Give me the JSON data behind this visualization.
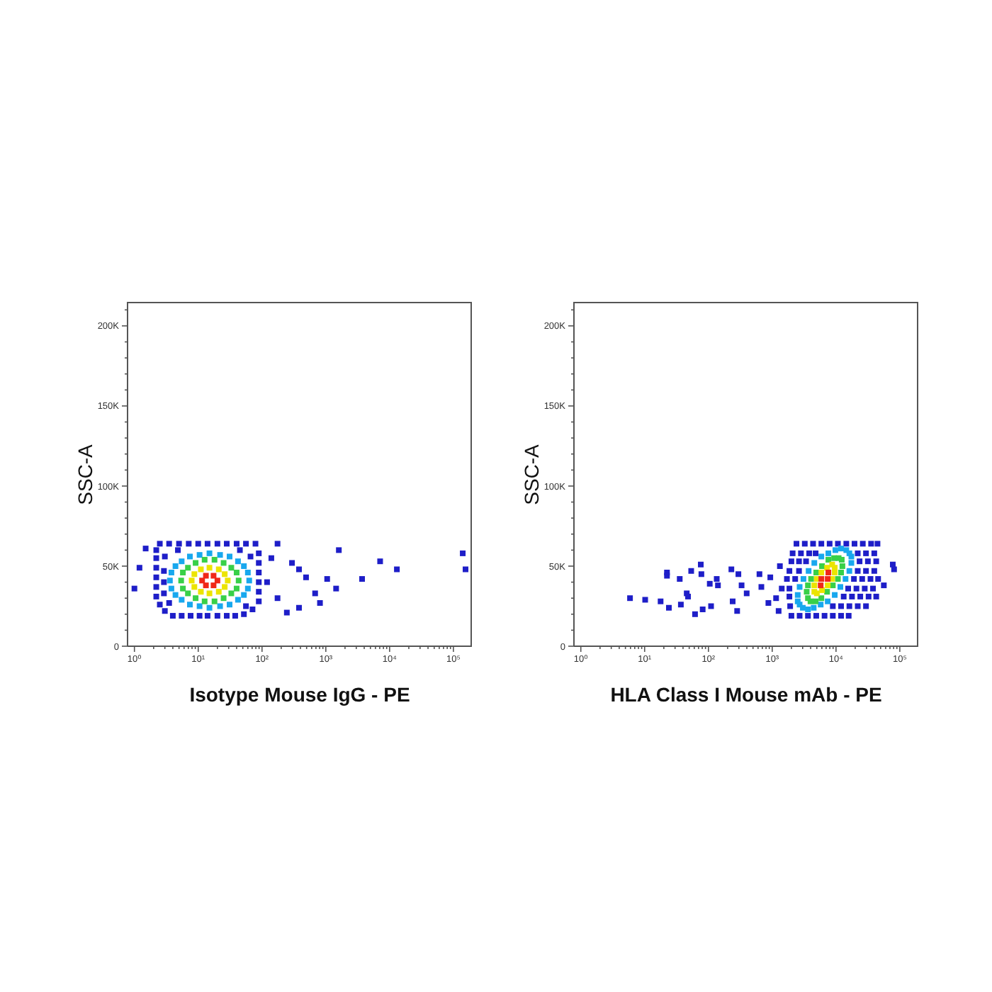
{
  "chart_data": [
    {
      "type": "scatter",
      "xlabel": "Isotype Mouse IgG - PE",
      "ylabel": "SSC-A",
      "log": "x",
      "marker": "square",
      "xlim": [
        0.78,
        195000
      ],
      "ylim": [
        0,
        215000
      ],
      "xticks": [
        {
          "value": 1,
          "label": "10⁰"
        },
        {
          "value": 2,
          "label": null
        },
        {
          "value": 3,
          "label": null
        },
        {
          "value": 4,
          "label": null
        },
        {
          "value": 5,
          "label": null
        },
        {
          "value": 6,
          "label": null
        },
        {
          "value": 7,
          "label": null
        },
        {
          "value": 8,
          "label": null
        },
        {
          "value": 9,
          "label": null
        },
        {
          "value": 10,
          "label": "10¹"
        },
        {
          "value": 20,
          "label": null
        },
        {
          "value": 30,
          "label": null
        },
        {
          "value": 40,
          "label": null
        },
        {
          "value": 50,
          "label": null
        },
        {
          "value": 60,
          "label": null
        },
        {
          "value": 70,
          "label": null
        },
        {
          "value": 80,
          "label": null
        },
        {
          "value": 90,
          "label": null
        },
        {
          "value": 100,
          "label": "10²"
        },
        {
          "value": 200,
          "label": null
        },
        {
          "value": 300,
          "label": null
        },
        {
          "value": 400,
          "label": null
        },
        {
          "value": 500,
          "label": null
        },
        {
          "value": 600,
          "label": null
        },
        {
          "value": 700,
          "label": null
        },
        {
          "value": 800,
          "label": null
        },
        {
          "value": 900,
          "label": null
        },
        {
          "value": 1000,
          "label": "10³"
        },
        {
          "value": 2000,
          "label": null
        },
        {
          "value": 3000,
          "label": null
        },
        {
          "value": 4000,
          "label": null
        },
        {
          "value": 5000,
          "label": null
        },
        {
          "value": 6000,
          "label": null
        },
        {
          "value": 7000,
          "label": null
        },
        {
          "value": 8000,
          "label": null
        },
        {
          "value": 9000,
          "label": null
        },
        {
          "value": 10000,
          "label": "10⁴"
        },
        {
          "value": 20000,
          "label": null
        },
        {
          "value": 30000,
          "label": null
        },
        {
          "value": 40000,
          "label": null
        },
        {
          "value": 50000,
          "label": null
        },
        {
          "value": 60000,
          "label": null
        },
        {
          "value": 70000,
          "label": null
        },
        {
          "value": 80000,
          "label": null
        },
        {
          "value": 90000,
          "label": null
        },
        {
          "value": 100000,
          "label": "10⁵"
        }
      ],
      "yticks": [
        0,
        {
          "value": 10000,
          "label": null
        },
        {
          "value": 20000,
          "label": null
        },
        {
          "value": 30000,
          "label": null
        },
        {
          "value": 40000,
          "label": null
        },
        {
          "value": 50000,
          "label": "50K"
        },
        {
          "value": 60000,
          "label": null
        },
        {
          "value": 70000,
          "label": null
        },
        {
          "value": 80000,
          "label": null
        },
        {
          "value": 90000,
          "label": null
        },
        {
          "value": 100000,
          "label": "100K"
        },
        {
          "value": 110000,
          "label": null
        },
        {
          "value": 120000,
          "label": null
        },
        {
          "value": 130000,
          "label": null
        },
        {
          "value": 140000,
          "label": null
        },
        {
          "value": 150000,
          "label": "150K"
        },
        {
          "value": 160000,
          "label": null
        },
        {
          "value": 170000,
          "label": null
        },
        {
          "value": 180000,
          "label": null
        },
        {
          "value": 190000,
          "label": null
        },
        {
          "value": 200000,
          "label": "200K"
        },
        {
          "value": 210000,
          "label": null
        }
      ],
      "series": [
        {
          "color": "#1e1ec8",
          "x": [
            2.5,
            3.5,
            5,
            7.1,
            10,
            14,
            20,
            28,
            40,
            56,
            79,
            89,
            89,
            89,
            89,
            89,
            89,
            71,
            52,
            38,
            28,
            20,
            14,
            10.5,
            7.6,
            5.5,
            4,
            3,
            2.5,
            2.2,
            2.2,
            2.2,
            2.2,
            2.2,
            2.2,
            3,
            4.8,
            45,
            66,
            56,
            3.5,
            2.9,
            2.9,
            2.9,
            1.2,
            1,
            1.5,
            175,
            295,
            380,
            490,
            1050,
            680,
            1450,
            1600,
            245,
            810,
            380,
            3700,
            7100,
            13000,
            140000,
            155000,
            175,
            120,
            140
          ],
          "values": [
            64000,
            64000,
            64000,
            64000,
            64000,
            64000,
            64000,
            64000,
            64000,
            64000,
            64000,
            58000,
            52000,
            46000,
            40000,
            34000,
            28000,
            23000,
            20000,
            19000,
            19000,
            19000,
            19000,
            19000,
            19000,
            19000,
            19000,
            22000,
            26000,
            31000,
            37000,
            43000,
            49000,
            55000,
            60000,
            56000,
            60000,
            60000,
            56000,
            25000,
            27000,
            47000,
            40000,
            33000,
            49000,
            36000,
            61000,
            64000,
            52000,
            48000,
            43000,
            42000,
            33000,
            36000,
            60000,
            21000,
            27000,
            24000,
            42000,
            53000,
            48000,
            58000,
            48000,
            30000,
            40000,
            55000
          ]
        },
        {
          "color": "#18a8ee",
          "x": [
            63,
            60,
            52,
            42,
            31,
            22,
            15,
            10.5,
            7.4,
            5.5,
            4.4,
            3.8,
            3.6,
            3.8,
            4.4,
            5.5,
            7.4,
            10.5,
            15,
            22,
            31,
            42,
            52,
            60
          ],
          "values": [
            41000,
            46000,
            50000,
            53000,
            56000,
            57000,
            58000,
            57000,
            56000,
            53000,
            50000,
            46000,
            41000,
            36000,
            32000,
            29000,
            26000,
            25000,
            24000,
            25000,
            26000,
            29000,
            32000,
            36000
          ]
        },
        {
          "color": "#38d048",
          "x": [
            43,
            40,
            33,
            25,
            18,
            12.6,
            9.1,
            6.9,
            5.75,
            5.4,
            5.75,
            6.9,
            9.1,
            12.6,
            18,
            25,
            33,
            40
          ],
          "values": [
            41000,
            46000,
            49000,
            52000,
            54000,
            54000,
            52000,
            49000,
            46000,
            41000,
            36000,
            33000,
            30000,
            28000,
            28000,
            30000,
            33000,
            36000
          ]
        },
        {
          "color": "#ece400",
          "x": [
            29,
            26,
            21,
            15,
            11,
            8.7,
            7.9,
            8.7,
            11,
            15,
            21,
            26
          ],
          "values": [
            41000,
            45000,
            48000,
            49000,
            48000,
            45000,
            41000,
            37000,
            34000,
            33000,
            34000,
            37000
          ]
        },
        {
          "color": "#f02818",
          "x": [
            20,
            17.4,
            13.2,
            11.5,
            13.2,
            17.4
          ],
          "values": [
            41000,
            44000,
            44000,
            41000,
            38000,
            38000
          ]
        }
      ]
    },
    {
      "type": "scatter",
      "xlabel": "HLA Class I Mouse mAb - PE",
      "ylabel": "SSC-A",
      "log": "x",
      "marker": "square",
      "xlim": [
        0.78,
        195000
      ],
      "ylim": [
        0,
        215000
      ],
      "xticks": [
        {
          "value": 1,
          "label": "10⁰"
        },
        {
          "value": 2,
          "label": null
        },
        {
          "value": 3,
          "label": null
        },
        {
          "value": 4,
          "label": null
        },
        {
          "value": 5,
          "label": null
        },
        {
          "value": 6,
          "label": null
        },
        {
          "value": 7,
          "label": null
        },
        {
          "value": 8,
          "label": null
        },
        {
          "value": 9,
          "label": null
        },
        {
          "value": 10,
          "label": "10¹"
        },
        {
          "value": 20,
          "label": null
        },
        {
          "value": 30,
          "label": null
        },
        {
          "value": 40,
          "label": null
        },
        {
          "value": 50,
          "label": null
        },
        {
          "value": 60,
          "label": null
        },
        {
          "value": 70,
          "label": null
        },
        {
          "value": 80,
          "label": null
        },
        {
          "value": 90,
          "label": null
        },
        {
          "value": 100,
          "label": "10²"
        },
        {
          "value": 200,
          "label": null
        },
        {
          "value": 300,
          "label": null
        },
        {
          "value": 400,
          "label": null
        },
        {
          "value": 500,
          "label": null
        },
        {
          "value": 600,
          "label": null
        },
        {
          "value": 700,
          "label": null
        },
        {
          "value": 800,
          "label": null
        },
        {
          "value": 900,
          "label": null
        },
        {
          "value": 1000,
          "label": "10³"
        },
        {
          "value": 2000,
          "label": null
        },
        {
          "value": 3000,
          "label": null
        },
        {
          "value": 4000,
          "label": null
        },
        {
          "value": 5000,
          "label": null
        },
        {
          "value": 6000,
          "label": null
        },
        {
          "value": 7000,
          "label": null
        },
        {
          "value": 8000,
          "label": null
        },
        {
          "value": 9000,
          "label": null
        },
        {
          "value": 10000,
          "label": "10⁴"
        },
        {
          "value": 20000,
          "label": null
        },
        {
          "value": 30000,
          "label": null
        },
        {
          "value": 40000,
          "label": null
        },
        {
          "value": 50000,
          "label": null
        },
        {
          "value": 60000,
          "label": null
        },
        {
          "value": 70000,
          "label": null
        },
        {
          "value": 80000,
          "label": null
        },
        {
          "value": 90000,
          "label": null
        },
        {
          "value": 100000,
          "label": "10⁵"
        }
      ],
      "yticks": [
        0,
        {
          "value": 10000,
          "label": null
        },
        {
          "value": 20000,
          "label": null
        },
        {
          "value": 30000,
          "label": null
        },
        {
          "value": 40000,
          "label": null
        },
        {
          "value": 50000,
          "label": "50K"
        },
        {
          "value": 60000,
          "label": null
        },
        {
          "value": 70000,
          "label": null
        },
        {
          "value": 80000,
          "label": null
        },
        {
          "value": 90000,
          "label": null
        },
        {
          "value": 100000,
          "label": "100K"
        },
        {
          "value": 110000,
          "label": null
        },
        {
          "value": 120000,
          "label": null
        },
        {
          "value": 130000,
          "label": null
        },
        {
          "value": 140000,
          "label": null
        },
        {
          "value": 150000,
          "label": "150K"
        },
        {
          "value": 160000,
          "label": null
        },
        {
          "value": 170000,
          "label": null
        },
        {
          "value": 180000,
          "label": null
        },
        {
          "value": 190000,
          "label": null
        },
        {
          "value": 200000,
          "label": "200K"
        },
        {
          "value": 210000,
          "label": null
        }
      ],
      "series": [
        {
          "color": "#1e1ec8",
          "x": [
            2400,
            3240,
            4370,
            5890,
            7940,
            10700,
            14500,
            19500,
            26300,
            35500,
            44700,
            2090,
            2820,
            3800,
            4790,
            21900,
            29500,
            39800,
            2000,
            2630,
            3390,
            23400,
            31600,
            42700,
            1860,
            2630,
            21900,
            29500,
            39800,
            1700,
            2290,
            19100,
            25700,
            34700,
            45700,
            1860,
            15500,
            20900,
            28200,
            38000,
            1860,
            13200,
            17800,
            24000,
            32400,
            42700,
            1910,
            8910,
            12000,
            16200,
            21900,
            29500,
            2000,
            2690,
            3630,
            4900,
            6610,
            8910,
            12000,
            15800,
            5.9,
            10.2,
            17.8,
            22.4,
            22.4,
            35.5,
            24,
            37,
            45.7,
            47.9,
            53.7,
            75.9,
            77.6,
            61.7,
            81.3,
            105,
            110,
            135,
            141,
            229,
            240,
            295,
            282,
            331,
            398,
            631,
            676,
            871,
            933,
            1150,
            1320,
            1410,
            1260,
            77600,
            81300,
            56200
          ],
          "values": [
            64000,
            64000,
            64000,
            64000,
            64000,
            64000,
            64000,
            64000,
            64000,
            64000,
            64000,
            58000,
            58000,
            58000,
            58000,
            58000,
            58000,
            58000,
            53000,
            53000,
            53000,
            53000,
            53000,
            53000,
            47000,
            47000,
            47000,
            47000,
            47000,
            42000,
            42000,
            42000,
            42000,
            42000,
            42000,
            36000,
            36000,
            36000,
            36000,
            36000,
            31000,
            31000,
            31000,
            31000,
            31000,
            31000,
            25000,
            25000,
            25000,
            25000,
            25000,
            25000,
            19000,
            19000,
            19000,
            19000,
            19000,
            19000,
            19000,
            19000,
            30000,
            29000,
            28000,
            46000,
            44000,
            42000,
            24000,
            26000,
            33000,
            31000,
            47000,
            51000,
            45000,
            20000,
            23000,
            39000,
            25000,
            42000,
            38000,
            48000,
            28000,
            45000,
            22000,
            38000,
            33000,
            45000,
            37000,
            27000,
            43000,
            30000,
            50000,
            36000,
            22000,
            51000,
            48000,
            38000
          ]
        },
        {
          "color": "#18a8ee",
          "x": [
            14100,
            16200,
            17400,
            17400,
            16200,
            14500,
            12000,
            9770,
            7590,
            5890,
            4570,
            3720,
            3090,
            2690,
            2510,
            2510,
            2690,
            3020,
            3630,
            4470,
            5750,
            7410,
            9550,
            11700
          ],
          "values": [
            42000,
            47000,
            52000,
            56000,
            58000,
            60000,
            61000,
            60000,
            58000,
            56000,
            52000,
            47000,
            42000,
            37000,
            32000,
            28000,
            26000,
            24000,
            23000,
            24000,
            26000,
            28000,
            32000,
            37000
          ]
        },
        {
          "color": "#38d048",
          "x": [
            10700,
            12000,
            12600,
            12300,
            11000,
            9330,
            7590,
            6030,
            4900,
            4070,
            3630,
            3470,
            3630,
            3980,
            4790,
            5890,
            7240,
            8910
          ],
          "values": [
            42000,
            46000,
            50000,
            54000,
            55000,
            55000,
            54000,
            50000,
            46000,
            42000,
            38000,
            34000,
            30000,
            28000,
            28000,
            30000,
            34000,
            38000
          ]
        },
        {
          "color": "#ece400",
          "x": [
            8710,
            9550,
            9550,
            8710,
            7240,
            5890,
            5010,
            4570,
            4570,
            5010,
            6030,
            7410
          ],
          "values": [
            42000,
            46000,
            49000,
            51000,
            49000,
            46000,
            42000,
            38000,
            34000,
            33000,
            35000,
            38000
          ]
        },
        {
          "color": "#f02818",
          "x": [
            7410,
            7590,
            5890,
            5750
          ],
          "values": [
            42000,
            46000,
            42000,
            38000
          ]
        }
      ]
    }
  ]
}
